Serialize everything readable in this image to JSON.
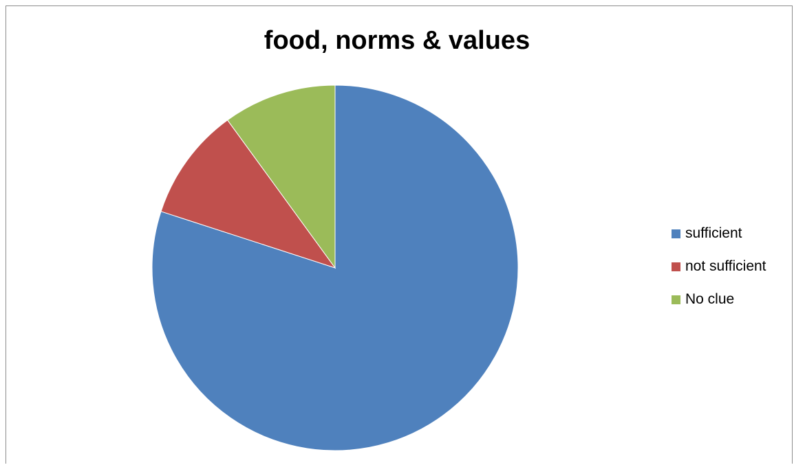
{
  "chart_data": {
    "type": "pie",
    "title": "food, norms & values",
    "categories": [
      "sufficient",
      "not sufficient",
      "No clue"
    ],
    "values": [
      80,
      10,
      10
    ],
    "colors": [
      "#4f81bd",
      "#c0504d",
      "#9bbb59"
    ],
    "start_angle_deg": 0,
    "direction": "clockwise",
    "legend_position": "right"
  }
}
